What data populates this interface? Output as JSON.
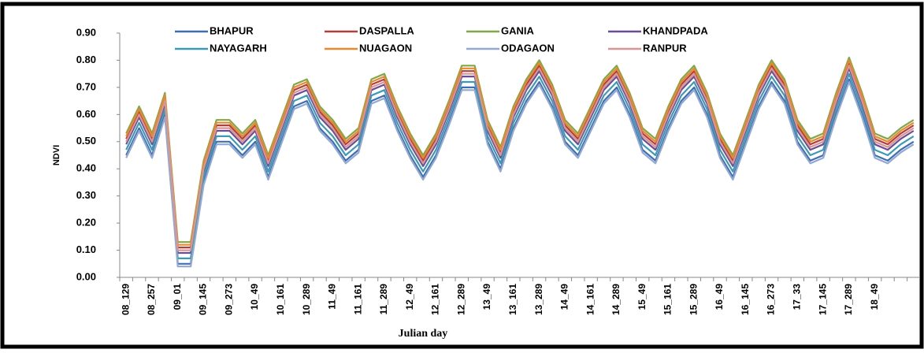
{
  "chart_data": {
    "type": "line",
    "x_label": "Julian day",
    "y_label": "NDVI",
    "categories": [
      "08_129",
      null,
      "08_257",
      null,
      "09_01",
      null,
      "09_145",
      null,
      "09_273",
      null,
      "10_49",
      null,
      "10_161",
      null,
      "10_289",
      null,
      "11_49",
      null,
      "11_161",
      null,
      "11_289",
      null,
      "12_49",
      null,
      "12_161",
      null,
      "12_289",
      null,
      "13_49",
      null,
      "13_161",
      null,
      "13_289",
      null,
      "14_49",
      null,
      "14_161",
      null,
      "14_289",
      null,
      "15_49",
      null,
      "15_161",
      null,
      "15_289",
      null,
      "16_49",
      null,
      "16_145",
      null,
      "16_273",
      null,
      "17_33",
      null,
      "17_145",
      null,
      "17_289",
      null,
      "18_49",
      null,
      null,
      null
    ],
    "ylim": [
      0,
      0.9
    ],
    "yticks": [
      {
        "value": 0,
        "label": "0.00"
      },
      {
        "value": 0.1,
        "label": "0.10"
      },
      {
        "value": 0.2,
        "label": "0.20"
      },
      {
        "value": 0.3,
        "label": "0.30"
      },
      {
        "value": 0.4,
        "label": "0.40"
      },
      {
        "value": 0.5,
        "label": "0.50"
      },
      {
        "value": 0.6,
        "label": "0.60"
      },
      {
        "value": 0.7,
        "label": "0.70"
      },
      {
        "value": 0.8,
        "label": "0.80"
      },
      {
        "value": 0.9,
        "label": "0.90"
      }
    ],
    "grid": false,
    "legend": "top",
    "series": [
      {
        "name": "BHAPUR",
        "color": "#3f6fb0",
        "values": [
          0.45,
          0.55,
          0.45,
          0.6,
          0.05,
          0.05,
          0.35,
          0.5,
          0.5,
          0.45,
          0.5,
          0.37,
          0.5,
          0.63,
          0.65,
          0.55,
          0.5,
          0.43,
          0.47,
          0.65,
          0.67,
          0.55,
          0.45,
          0.37,
          0.45,
          0.57,
          0.7,
          0.7,
          0.5,
          0.4,
          0.55,
          0.65,
          0.72,
          0.63,
          0.5,
          0.45,
          0.55,
          0.65,
          0.7,
          0.6,
          0.47,
          0.43,
          0.55,
          0.65,
          0.7,
          0.6,
          0.45,
          0.37,
          0.5,
          0.63,
          0.72,
          0.65,
          0.5,
          0.43,
          0.45,
          0.6,
          0.73,
          0.6,
          0.45,
          0.43,
          0.47,
          0.5
        ]
      },
      {
        "name": "DASPALLA",
        "color": "#b0403c",
        "values": [
          0.51,
          0.61,
          0.51,
          0.66,
          0.11,
          0.11,
          0.41,
          0.56,
          0.56,
          0.51,
          0.56,
          0.43,
          0.56,
          0.69,
          0.71,
          0.61,
          0.56,
          0.49,
          0.53,
          0.71,
          0.73,
          0.61,
          0.51,
          0.43,
          0.51,
          0.63,
          0.76,
          0.76,
          0.56,
          0.46,
          0.61,
          0.71,
          0.78,
          0.69,
          0.56,
          0.51,
          0.61,
          0.71,
          0.76,
          0.66,
          0.53,
          0.49,
          0.61,
          0.71,
          0.76,
          0.66,
          0.51,
          0.43,
          0.56,
          0.69,
          0.78,
          0.71,
          0.56,
          0.49,
          0.51,
          0.66,
          0.79,
          0.66,
          0.51,
          0.49,
          0.53,
          0.56
        ]
      },
      {
        "name": "GANIA",
        "color": "#7fa84a",
        "values": [
          0.53,
          0.63,
          0.53,
          0.68,
          0.13,
          0.13,
          0.43,
          0.58,
          0.58,
          0.53,
          0.58,
          0.45,
          0.58,
          0.71,
          0.73,
          0.63,
          0.58,
          0.51,
          0.55,
          0.73,
          0.75,
          0.63,
          0.53,
          0.45,
          0.53,
          0.65,
          0.78,
          0.78,
          0.58,
          0.48,
          0.63,
          0.73,
          0.8,
          0.71,
          0.58,
          0.53,
          0.63,
          0.73,
          0.78,
          0.68,
          0.55,
          0.51,
          0.63,
          0.73,
          0.78,
          0.68,
          0.53,
          0.45,
          0.58,
          0.71,
          0.8,
          0.73,
          0.58,
          0.51,
          0.53,
          0.68,
          0.81,
          0.68,
          0.53,
          0.51,
          0.55,
          0.58
        ]
      },
      {
        "name": "KHANDPADA",
        "color": "#6a4d94",
        "values": [
          0.49,
          0.59,
          0.49,
          0.64,
          0.09,
          0.09,
          0.39,
          0.54,
          0.54,
          0.49,
          0.54,
          0.41,
          0.54,
          0.67,
          0.69,
          0.59,
          0.54,
          0.47,
          0.51,
          0.69,
          0.71,
          0.59,
          0.49,
          0.41,
          0.49,
          0.61,
          0.74,
          0.74,
          0.54,
          0.44,
          0.59,
          0.69,
          0.76,
          0.67,
          0.54,
          0.49,
          0.59,
          0.69,
          0.74,
          0.64,
          0.51,
          0.47,
          0.59,
          0.69,
          0.74,
          0.64,
          0.49,
          0.41,
          0.54,
          0.67,
          0.76,
          0.69,
          0.54,
          0.47,
          0.49,
          0.64,
          0.77,
          0.64,
          0.49,
          0.47,
          0.51,
          0.54
        ]
      },
      {
        "name": "NAYAGARH",
        "color": "#3c9ab5",
        "values": [
          0.47,
          0.57,
          0.47,
          0.62,
          0.07,
          0.07,
          0.37,
          0.52,
          0.52,
          0.47,
          0.52,
          0.39,
          0.52,
          0.65,
          0.67,
          0.57,
          0.52,
          0.45,
          0.49,
          0.67,
          0.69,
          0.57,
          0.47,
          0.39,
          0.47,
          0.59,
          0.72,
          0.72,
          0.52,
          0.42,
          0.57,
          0.67,
          0.74,
          0.65,
          0.52,
          0.47,
          0.57,
          0.67,
          0.72,
          0.62,
          0.49,
          0.45,
          0.57,
          0.67,
          0.72,
          0.62,
          0.47,
          0.39,
          0.52,
          0.65,
          0.74,
          0.67,
          0.52,
          0.45,
          0.47,
          0.62,
          0.75,
          0.62,
          0.47,
          0.45,
          0.49,
          0.52
        ]
      },
      {
        "name": "NUAGAON",
        "color": "#e8882f",
        "values": [
          0.52,
          0.62,
          0.52,
          0.67,
          0.12,
          0.12,
          0.42,
          0.57,
          0.57,
          0.52,
          0.57,
          0.44,
          0.57,
          0.7,
          0.72,
          0.62,
          0.57,
          0.5,
          0.54,
          0.72,
          0.74,
          0.62,
          0.52,
          0.44,
          0.52,
          0.64,
          0.77,
          0.77,
          0.57,
          0.47,
          0.62,
          0.72,
          0.79,
          0.7,
          0.57,
          0.52,
          0.62,
          0.72,
          0.77,
          0.67,
          0.54,
          0.5,
          0.62,
          0.72,
          0.77,
          0.67,
          0.52,
          0.44,
          0.57,
          0.7,
          0.79,
          0.72,
          0.57,
          0.5,
          0.52,
          0.67,
          0.8,
          0.67,
          0.52,
          0.5,
          0.54,
          0.57
        ]
      },
      {
        "name": "ODAGAON",
        "color": "#93a9d3",
        "values": [
          0.44,
          0.54,
          0.44,
          0.59,
          0.04,
          0.04,
          0.34,
          0.49,
          0.49,
          0.44,
          0.49,
          0.36,
          0.49,
          0.62,
          0.64,
          0.54,
          0.49,
          0.42,
          0.46,
          0.64,
          0.66,
          0.54,
          0.44,
          0.36,
          0.44,
          0.56,
          0.69,
          0.69,
          0.49,
          0.39,
          0.54,
          0.64,
          0.71,
          0.62,
          0.49,
          0.44,
          0.54,
          0.64,
          0.69,
          0.59,
          0.46,
          0.42,
          0.54,
          0.64,
          0.69,
          0.59,
          0.44,
          0.36,
          0.49,
          0.62,
          0.71,
          0.64,
          0.49,
          0.42,
          0.44,
          0.59,
          0.72,
          0.59,
          0.44,
          0.42,
          0.46,
          0.49
        ]
      },
      {
        "name": "RANPUR",
        "color": "#d99595",
        "values": [
          0.5,
          0.6,
          0.5,
          0.65,
          0.1,
          0.1,
          0.4,
          0.55,
          0.55,
          0.5,
          0.55,
          0.42,
          0.55,
          0.68,
          0.7,
          0.6,
          0.55,
          0.48,
          0.52,
          0.7,
          0.72,
          0.6,
          0.5,
          0.42,
          0.5,
          0.62,
          0.75,
          0.75,
          0.55,
          0.45,
          0.6,
          0.7,
          0.77,
          0.68,
          0.55,
          0.5,
          0.6,
          0.7,
          0.75,
          0.65,
          0.52,
          0.48,
          0.6,
          0.7,
          0.75,
          0.65,
          0.5,
          0.42,
          0.55,
          0.68,
          0.77,
          0.7,
          0.55,
          0.48,
          0.5,
          0.65,
          0.78,
          0.65,
          0.5,
          0.48,
          0.52,
          0.55
        ]
      }
    ]
  }
}
